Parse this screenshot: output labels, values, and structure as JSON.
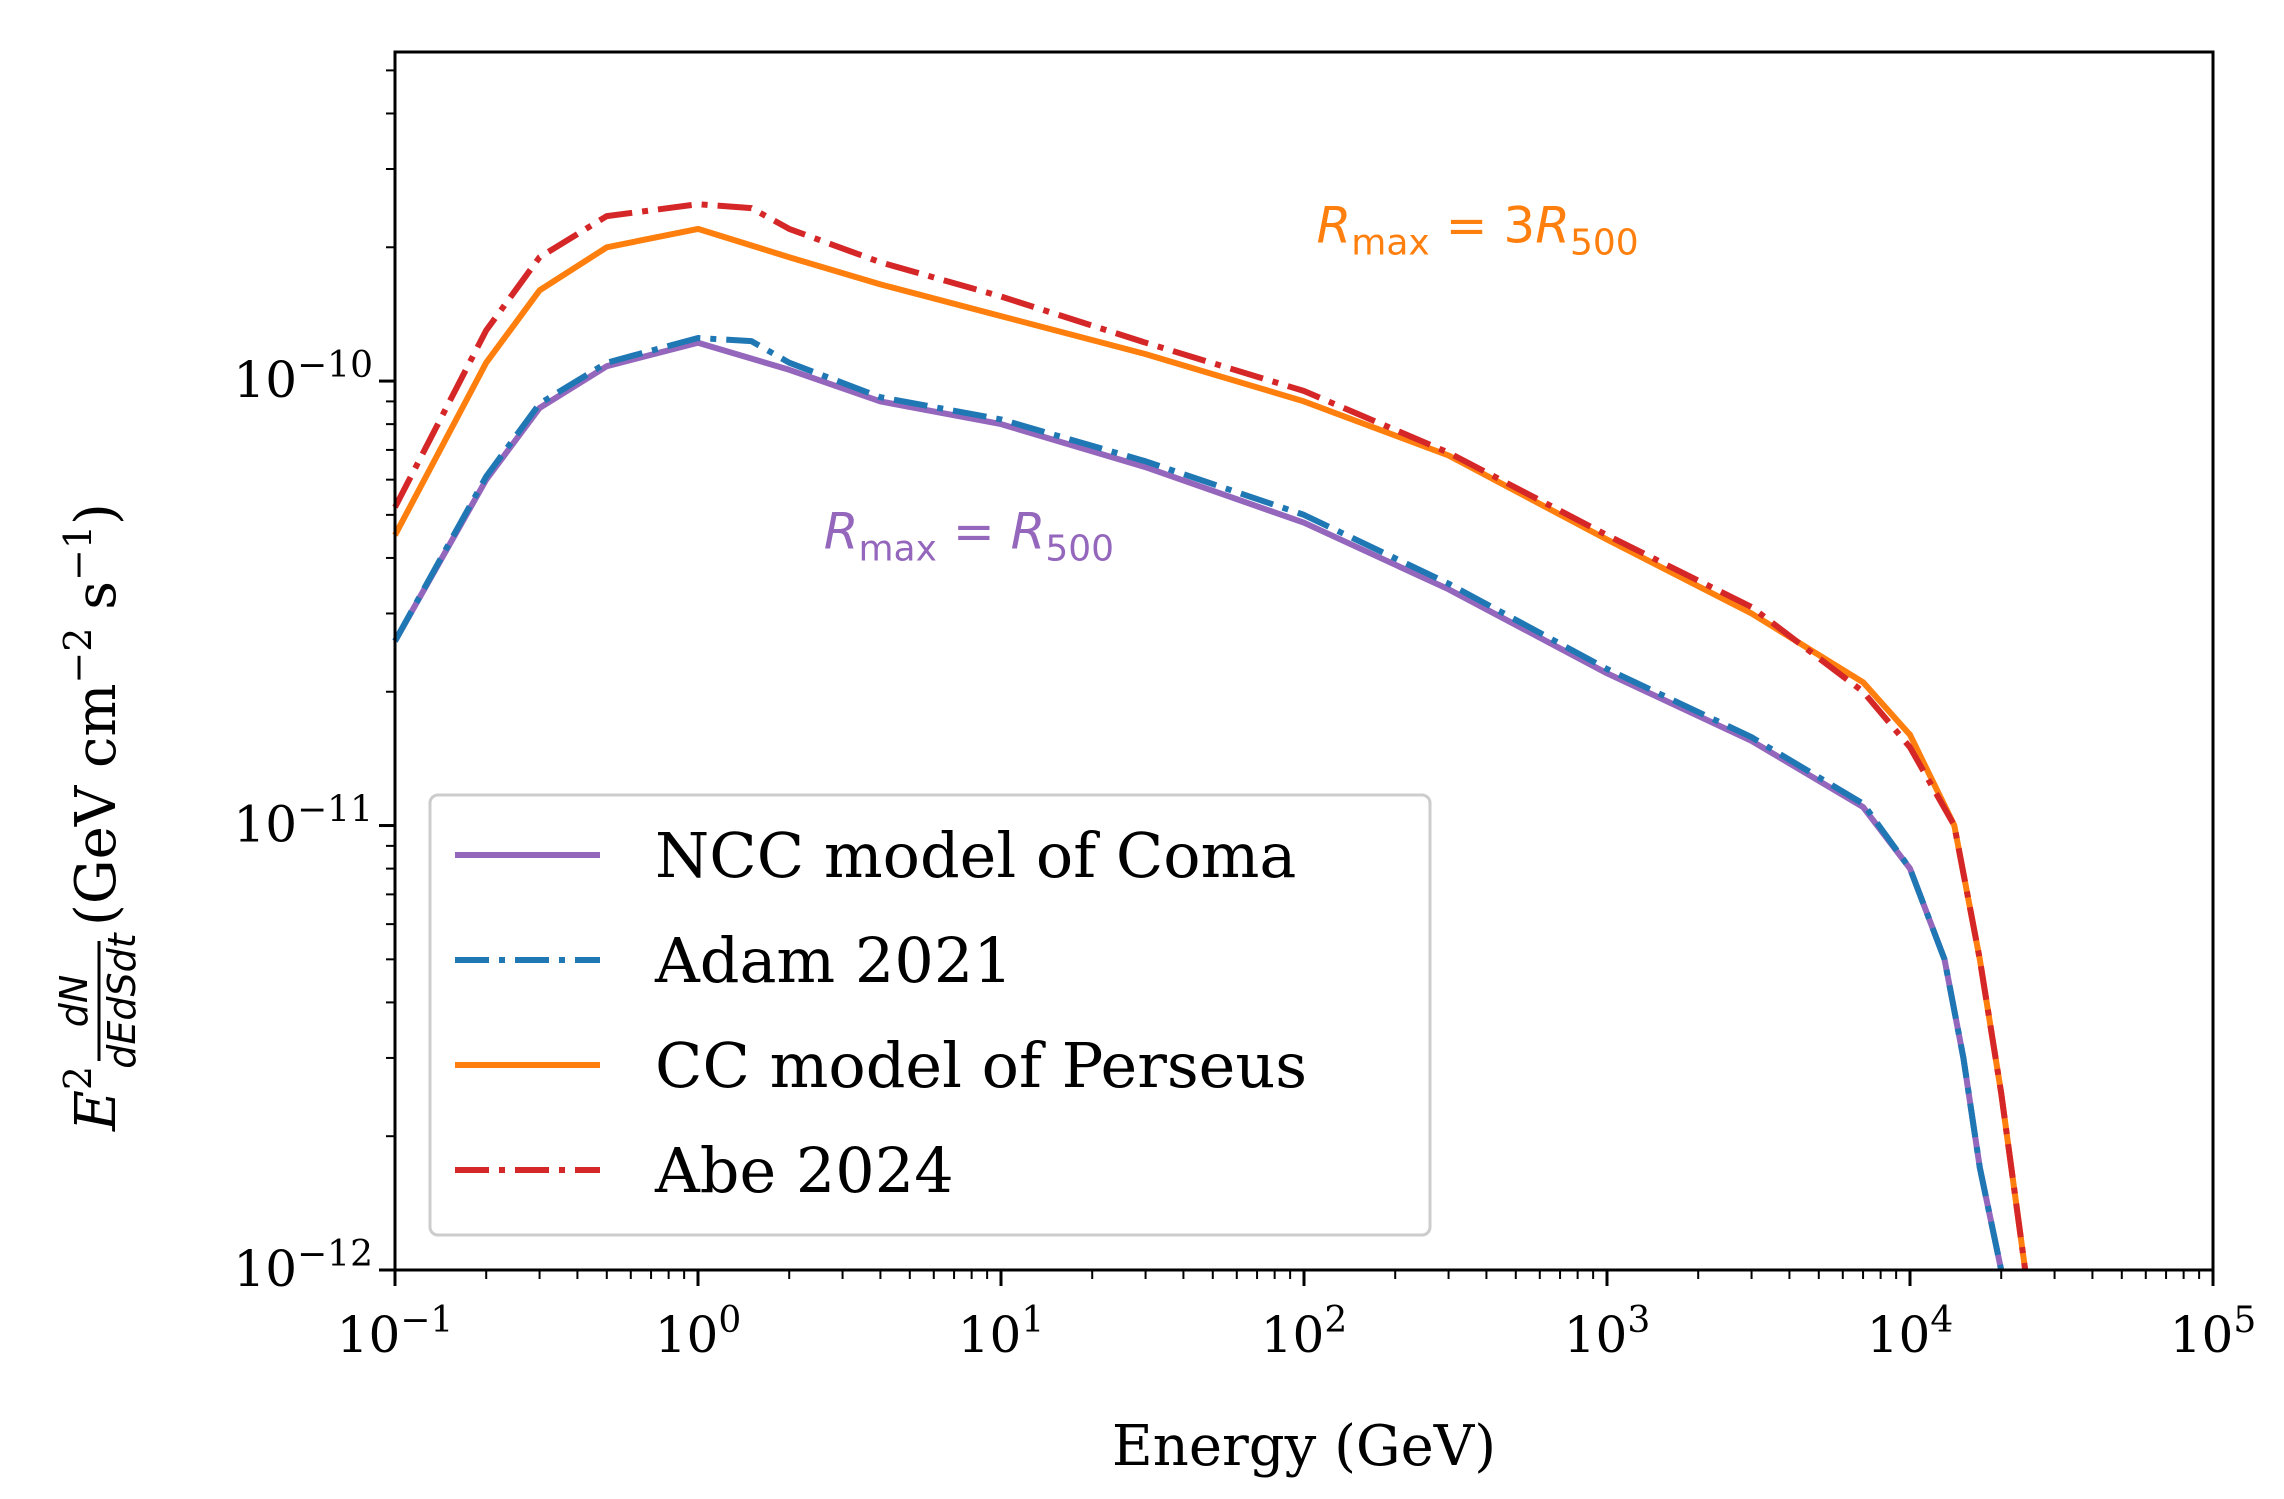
{
  "chart_data": {
    "type": "line",
    "title": "",
    "xlabel": "Energy (GeV)",
    "ylabel": "E^2 dN/dEdSdt (GeV cm^-2 s^-1)",
    "xscale": "log",
    "yscale": "log",
    "xlim": [
      0.1,
      100000
    ],
    "ylim": [
      1e-12,
      5.5e-10
    ],
    "x_ticks": [
      {
        "value": 0.1,
        "base": "10",
        "exp": "−1"
      },
      {
        "value": 1,
        "base": "10",
        "exp": "0"
      },
      {
        "value": 10,
        "base": "10",
        "exp": "1"
      },
      {
        "value": 100,
        "base": "10",
        "exp": "2"
      },
      {
        "value": 1000,
        "base": "10",
        "exp": "3"
      },
      {
        "value": 10000,
        "base": "10",
        "exp": "4"
      },
      {
        "value": 100000,
        "base": "10",
        "exp": "5"
      }
    ],
    "y_ticks": [
      {
        "value": 1e-12,
        "base": "10",
        "exp": "−12"
      },
      {
        "value": 1e-11,
        "base": "10",
        "exp": "−11"
      },
      {
        "value": 1e-10,
        "base": "10",
        "exp": "−10"
      }
    ],
    "legend_position": "lower-left",
    "series": [
      {
        "name": "NCC model of Coma",
        "color": "#9467bd",
        "style": "solid",
        "x": [
          0.1,
          0.2,
          0.3,
          0.5,
          1.0,
          2.0,
          4.0,
          10,
          30,
          100,
          300,
          1000,
          3000,
          7000,
          10000,
          13000,
          15000,
          17000,
          20000
        ],
        "y": [
          2.6e-11,
          6e-11,
          8.7e-11,
          1.08e-10,
          1.22e-10,
          1.06e-10,
          9e-11,
          8e-11,
          6.4e-11,
          4.8e-11,
          3.4e-11,
          2.2e-11,
          1.55e-11,
          1.1e-11,
          8e-12,
          5e-12,
          3e-12,
          1.7e-12,
          1e-12
        ]
      },
      {
        "name": "Adam 2021",
        "color": "#1f77b4",
        "style": "dashdot",
        "x": [
          0.1,
          0.2,
          0.3,
          0.5,
          1.0,
          1.5,
          2.0,
          4.0,
          10,
          30,
          100,
          300,
          1000,
          3000,
          7000,
          10000,
          13000,
          15000,
          17000,
          20000
        ],
        "y": [
          2.6e-11,
          6.1e-11,
          8.9e-11,
          1.1e-10,
          1.25e-10,
          1.23e-10,
          1.1e-10,
          9.2e-11,
          8.2e-11,
          6.6e-11,
          5e-11,
          3.5e-11,
          2.25e-11,
          1.58e-11,
          1.12e-11,
          8e-12,
          5e-12,
          3e-12,
          1.7e-12,
          1e-12
        ]
      },
      {
        "name": "CC model of Perseus",
        "color": "#ff7f0e",
        "style": "solid",
        "x": [
          0.1,
          0.2,
          0.3,
          0.5,
          1.0,
          2.0,
          4.0,
          10,
          30,
          100,
          300,
          1000,
          3000,
          7000,
          10000,
          14000,
          17000,
          20000,
          24000
        ],
        "y": [
          4.5e-11,
          1.1e-10,
          1.6e-10,
          2e-10,
          2.2e-10,
          1.9e-10,
          1.65e-10,
          1.4e-10,
          1.15e-10,
          9e-11,
          6.8e-11,
          4.4e-11,
          3e-11,
          2.1e-11,
          1.6e-11,
          1e-11,
          5e-12,
          2.5e-12,
          1e-12
        ]
      },
      {
        "name": "Abe 2024",
        "color": "#d62728",
        "style": "dashdot",
        "x": [
          0.1,
          0.2,
          0.3,
          0.5,
          1.0,
          1.5,
          2.0,
          4.0,
          10,
          30,
          100,
          300,
          1000,
          3000,
          7000,
          10000,
          14000,
          17000,
          20000,
          24000
        ],
        "y": [
          5.2e-11,
          1.3e-10,
          1.9e-10,
          2.35e-10,
          2.5e-10,
          2.45e-10,
          2.2e-10,
          1.85e-10,
          1.55e-10,
          1.22e-10,
          9.5e-11,
          6.9e-11,
          4.5e-11,
          3.1e-11,
          2e-11,
          1.5e-11,
          1e-11,
          5e-12,
          2.5e-12,
          1e-12
        ]
      }
    ],
    "annotations": [
      {
        "text_main": "R",
        "sub1": "max",
        "eq": " = ",
        "rhs_prefix": "",
        "rhs_main": "R",
        "sub2": "500",
        "color": "#9467bd",
        "x": 2.6,
        "y": 4.2e-11
      },
      {
        "text_main": "R",
        "sub1": "max",
        "eq": " = ",
        "rhs_prefix": "3",
        "rhs_main": "R",
        "sub2": "500",
        "color": "#ff7f0e",
        "x": 110,
        "y": 2.05e-10
      }
    ],
    "ylabel_parts": {
      "e": "E",
      "e_exp": "2",
      "num": "dN",
      "den": "dEdSdt",
      "units_open": " (GeV cm",
      "u1": "−2",
      "mid": " s",
      "u2": "−1",
      "close": ")"
    },
    "xlabel_text": "Energy (GeV)"
  }
}
